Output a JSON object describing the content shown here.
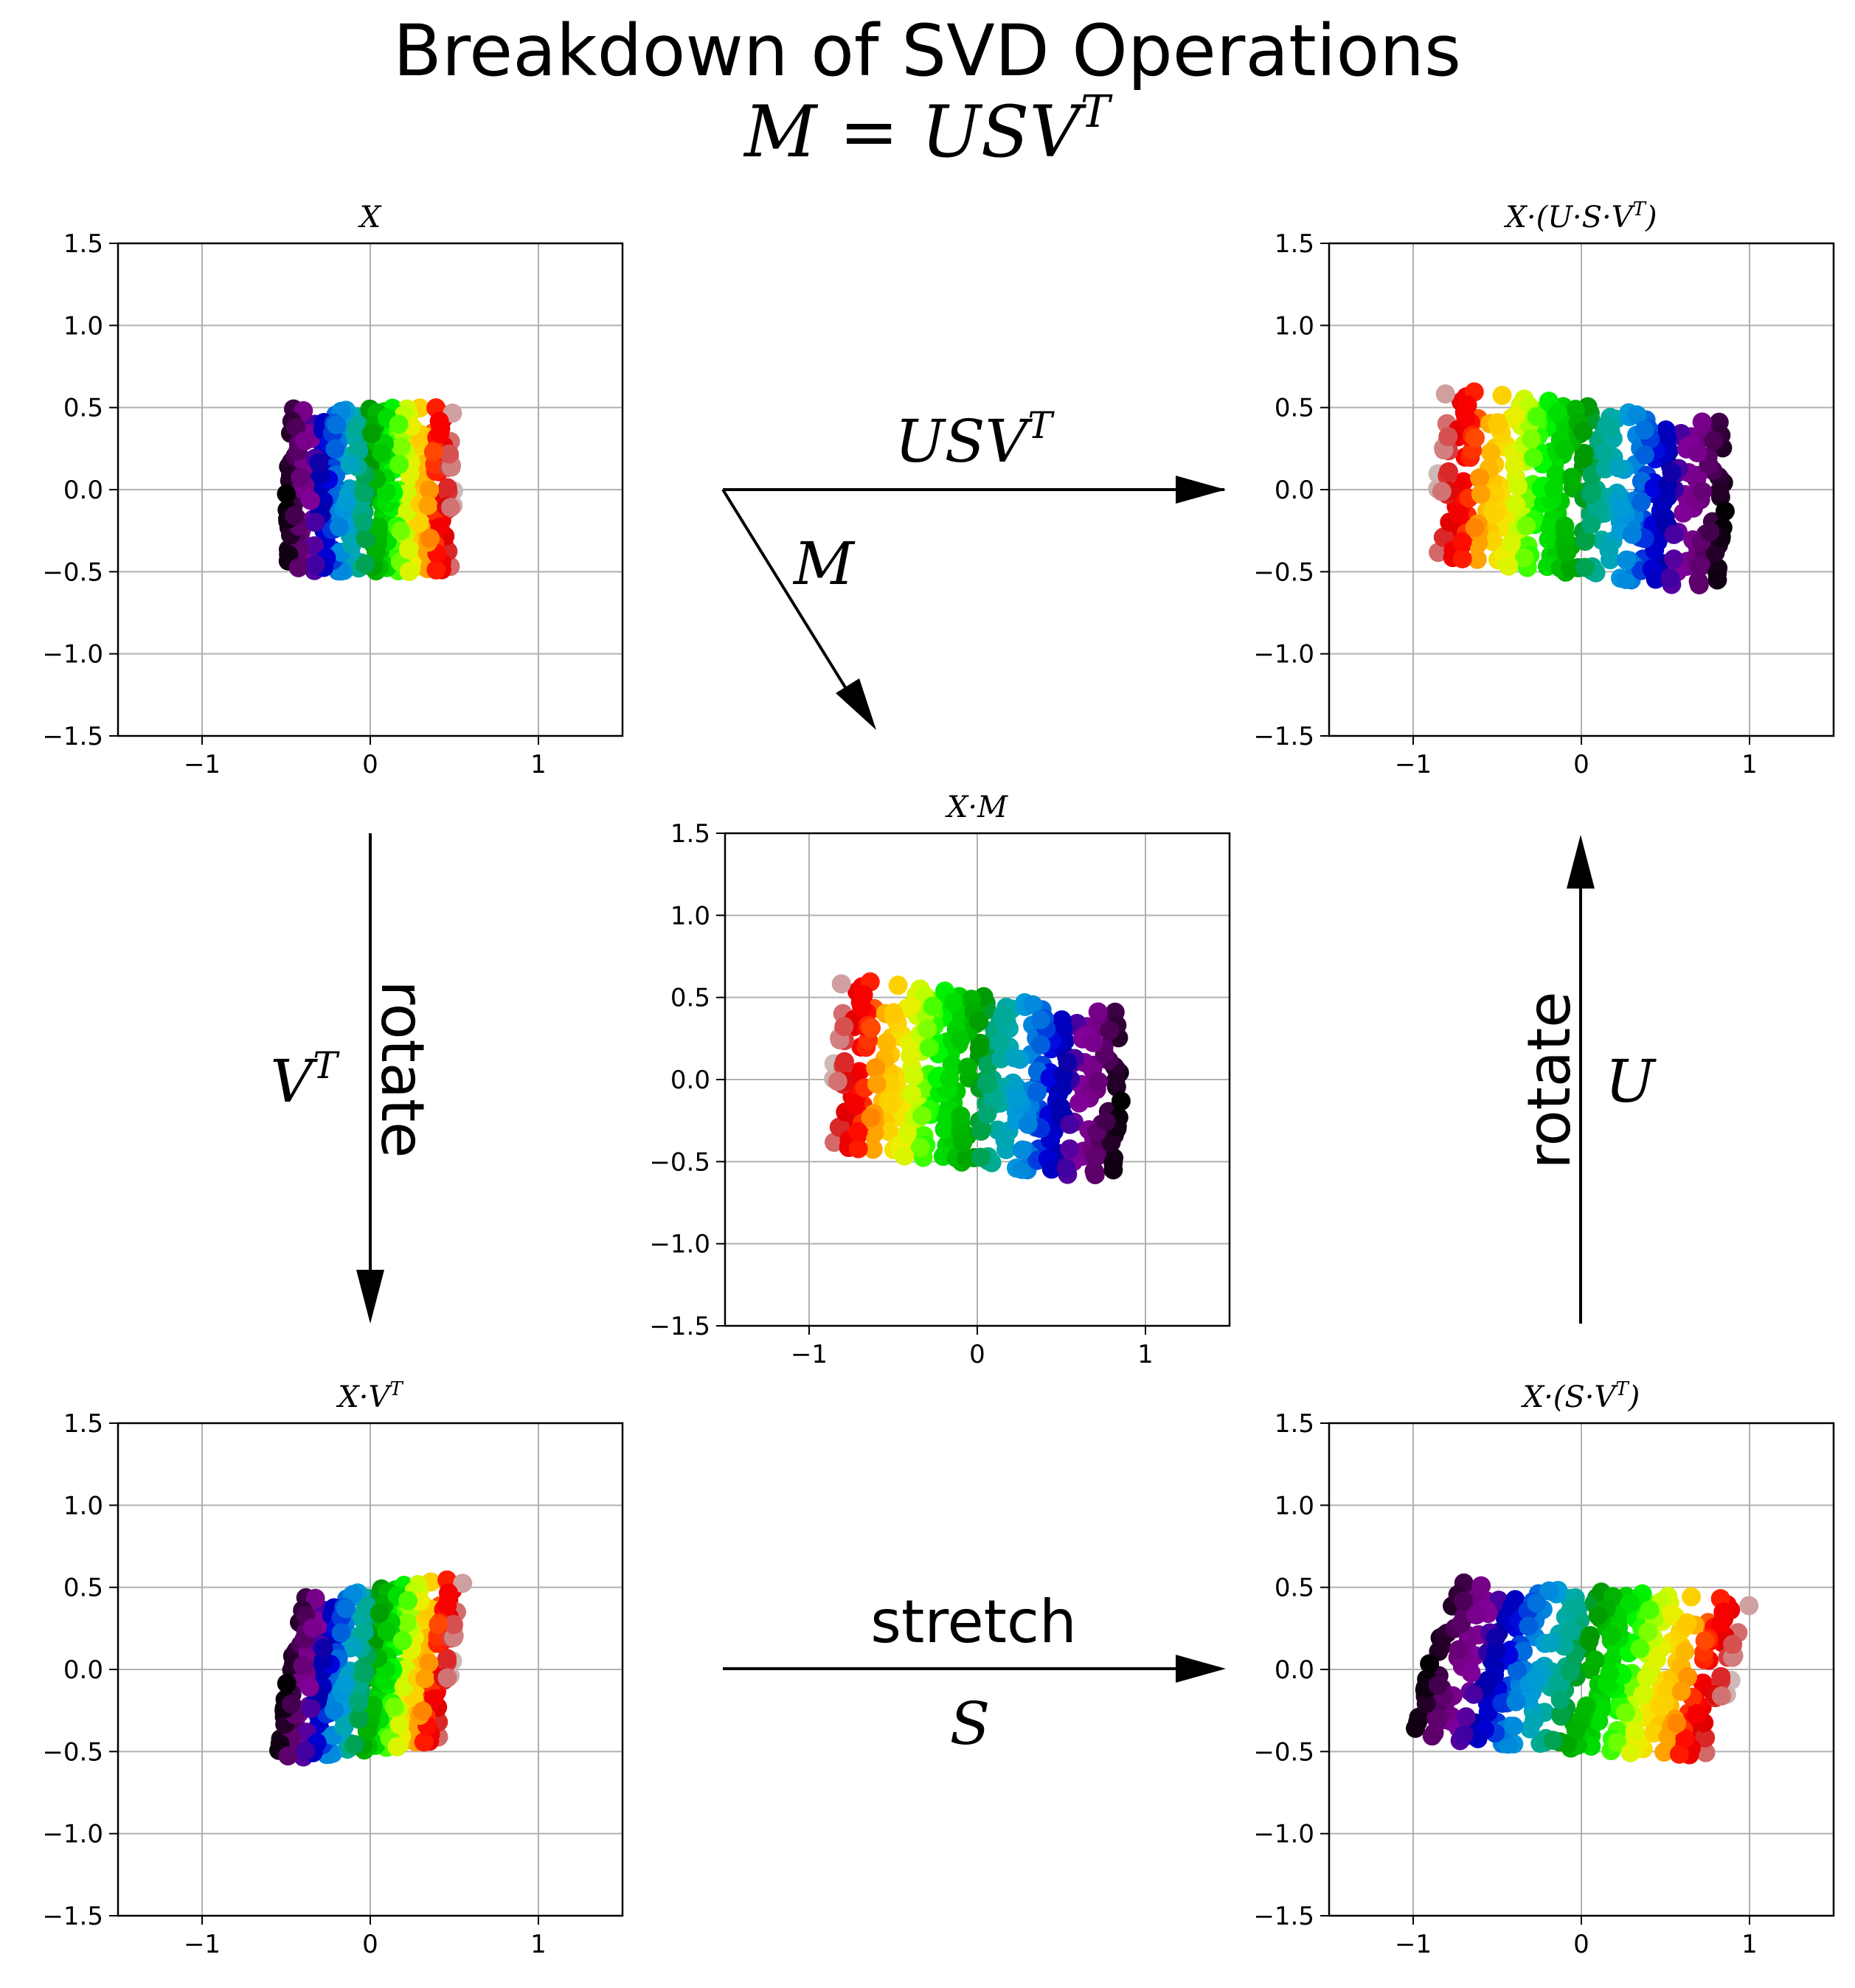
{
  "figure": {
    "title": "Breakdown of SVD Operations",
    "subtitle": "M = USV^T"
  },
  "arrows": {
    "top": {
      "label": "USV^T"
    },
    "diagonal": {
      "label": "M"
    },
    "left": {
      "label_math": "V^T",
      "label_word": "rotate"
    },
    "right": {
      "label_math": "U",
      "label_word": "rotate"
    },
    "bottom": {
      "label_word": "stretch",
      "label_math": "S"
    }
  },
  "chart_data": [
    {
      "id": "X",
      "type": "scatter",
      "title": "X",
      "xlim": [
        -1.5,
        1.5
      ],
      "ylim": [
        -1.5,
        1.5
      ],
      "xticks": [
        -1,
        0,
        1
      ],
      "yticks": [
        -1.5,
        -1.0,
        -0.5,
        0.0,
        0.5,
        1.0,
        1.5
      ],
      "grid": true,
      "colormap": "nipy_spectral (by x)",
      "points": {
        "x_range": [
          -0.5,
          0.5
        ],
        "y_range": [
          -0.5,
          0.5
        ],
        "shape": "square"
      },
      "matrix": [
        [
          1,
          0
        ],
        [
          0,
          1
        ]
      ]
    },
    {
      "id": "XUSVT",
      "type": "scatter",
      "title": "X·(U·S·V^T)",
      "xlim": [
        -1.5,
        1.5
      ],
      "ylim": [
        -1.5,
        1.5
      ],
      "xticks": [
        -1,
        0,
        1
      ],
      "yticks": [
        -1.5,
        -1.0,
        -0.5,
        0.0,
        0.5,
        1.0,
        1.5
      ],
      "grid": true,
      "matrix": [
        [
          -1.72,
          0.21
        ],
        [
          0.07,
          1.03
        ]
      ]
    },
    {
      "id": "XM",
      "type": "scatter",
      "title": "X·M",
      "xlim": [
        -1.5,
        1.5
      ],
      "ylim": [
        -1.5,
        1.5
      ],
      "xticks": [
        -1,
        0,
        1
      ],
      "yticks": [
        -1.5,
        -1.0,
        -0.5,
        0.0,
        0.5,
        1.0,
        1.5
      ],
      "grid": true,
      "matrix": [
        [
          -1.72,
          0.21
        ],
        [
          0.07,
          1.03
        ]
      ]
    },
    {
      "id": "XVT",
      "type": "scatter",
      "title": "X·V^T",
      "xlim": [
        -1.5,
        1.5
      ],
      "ylim": [
        -1.5,
        1.5
      ],
      "xticks": [
        -1,
        0,
        1
      ],
      "yticks": [
        -1.5,
        -1.0,
        -0.5,
        0.0,
        0.5,
        1.0,
        1.5
      ],
      "grid": true,
      "matrix": [
        [
          0.99,
          0.12
        ],
        [
          0.14,
          1.0
        ]
      ]
    },
    {
      "id": "XSVT",
      "type": "scatter",
      "title": "X·(S·V^T)",
      "xlim": [
        -1.5,
        1.5
      ],
      "ylim": [
        -1.5,
        1.5
      ],
      "xticks": [
        -1,
        0,
        1
      ],
      "yticks": [
        -1.5,
        -1.0,
        -0.5,
        0.0,
        0.5,
        1.0,
        1.5
      ],
      "grid": true,
      "matrix": [
        [
          1.8,
          -0.12
        ],
        [
          0.25,
          0.96
        ]
      ]
    }
  ]
}
